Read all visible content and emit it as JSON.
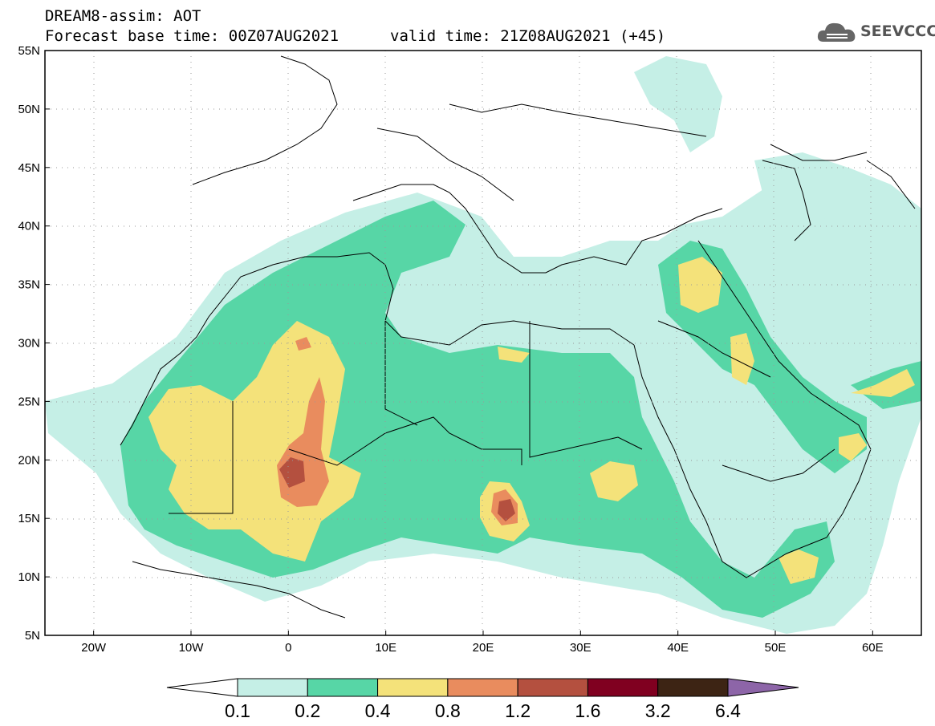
{
  "header": {
    "title_line1": "DREAM8-assim: AOT",
    "title_line2": "Forecast base time: 00Z07AUG2021",
    "valid_time": "valid time: 21Z08AUG2021 (+45)"
  },
  "logo": {
    "text": "SEEVCCC",
    "icon": "cloud-icon"
  },
  "map": {
    "lat_labels": [
      "55N",
      "50N",
      "45N",
      "40N",
      "35N",
      "30N",
      "25N",
      "20N",
      "15N",
      "10N",
      "5N"
    ],
    "lon_labels": [
      "20W",
      "10W",
      "0",
      "10E",
      "20E",
      "30E",
      "40E",
      "50E",
      "60E"
    ],
    "lat_range": [
      5,
      55
    ],
    "lon_range": [
      -25,
      65
    ]
  },
  "colorbar": {
    "labels": [
      "0.1",
      "0.2",
      "0.4",
      "0.8",
      "1.2",
      "1.6",
      "3.2",
      "6.4"
    ],
    "colors": [
      "#ffffff",
      "#c5efe6",
      "#57d6a6",
      "#f4e27a",
      "#e98c5e",
      "#b4503f",
      "#800020",
      "#3d2414",
      "#8d65a8"
    ]
  }
}
